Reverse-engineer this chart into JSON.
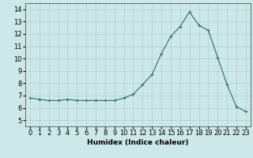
{
  "x": [
    0,
    1,
    2,
    3,
    4,
    5,
    6,
    7,
    8,
    9,
    10,
    11,
    12,
    13,
    14,
    15,
    16,
    17,
    18,
    19,
    20,
    21,
    22,
    23
  ],
  "y": [
    6.8,
    6.7,
    6.6,
    6.6,
    6.7,
    6.6,
    6.6,
    6.6,
    6.6,
    6.6,
    6.8,
    7.1,
    7.9,
    8.7,
    10.4,
    11.8,
    12.6,
    13.8,
    12.7,
    12.3,
    10.1,
    7.9,
    6.1,
    5.7
  ],
  "line_color": "#2d6e5e",
  "marker": "+",
  "bg_color": "#cce8e8",
  "grid_color": "#b0d0d0",
  "xlabel": "Humidex (Indice chaleur)",
  "ylim": [
    4.5,
    14.5
  ],
  "yticks": [
    5,
    6,
    7,
    8,
    9,
    10,
    11,
    12,
    13,
    14
  ],
  "xlim": [
    -0.5,
    23.5
  ],
  "xtick_labels": [
    "0",
    "1",
    "2",
    "3",
    "4",
    "5",
    "6",
    "7",
    "8",
    "9",
    "10",
    "11",
    "12",
    "13",
    "14",
    "15",
    "16",
    "17",
    "18",
    "19",
    "20",
    "21",
    "22",
    "23"
  ],
  "fontsize": 6.0,
  "title": ""
}
